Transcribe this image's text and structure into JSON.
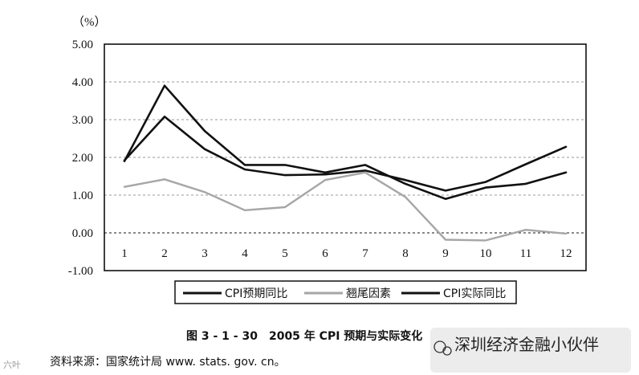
{
  "chart_data": {
    "type": "line",
    "y_unit_label": "（%）",
    "categories": [
      "1",
      "2",
      "3",
      "4",
      "5",
      "6",
      "7",
      "8",
      "9",
      "10",
      "11",
      "12"
    ],
    "ylim": [
      -1.0,
      5.0
    ],
    "yticks": [
      "5.00",
      "4.00",
      "3.00",
      "2.00",
      "1.00",
      "0.00",
      "-1.00"
    ],
    "ytick_values": [
      5,
      4,
      3,
      2,
      1,
      0,
      -1
    ],
    "grid": "horizontal dashed",
    "legend_placement": "bottom",
    "series": [
      {
        "name": "CPI预期同比",
        "color": "#111111",
        "values": [
          1.92,
          3.08,
          2.22,
          1.68,
          1.53,
          1.55,
          1.65,
          1.4,
          1.12,
          1.35,
          1.82,
          2.28
        ]
      },
      {
        "name": "翘尾因素",
        "color": "#a6a6a6",
        "values": [
          1.22,
          1.42,
          1.08,
          0.6,
          0.68,
          1.4,
          1.6,
          0.95,
          -0.18,
          -0.2,
          0.08,
          -0.02
        ]
      },
      {
        "name": "CPI实际同比",
        "color": "#111111",
        "values": [
          1.9,
          3.9,
          2.7,
          1.8,
          1.8,
          1.6,
          1.8,
          1.3,
          0.9,
          1.2,
          1.3,
          1.6
        ]
      }
    ]
  },
  "caption": "图 3 - 1 - 30　2005 年 CPI 预期与实际变化",
  "source": "资料来源：国家统计局 www. stats. gov. cn。",
  "watermark": "深圳经济金融小伙伴",
  "corner_mark": "六叶"
}
